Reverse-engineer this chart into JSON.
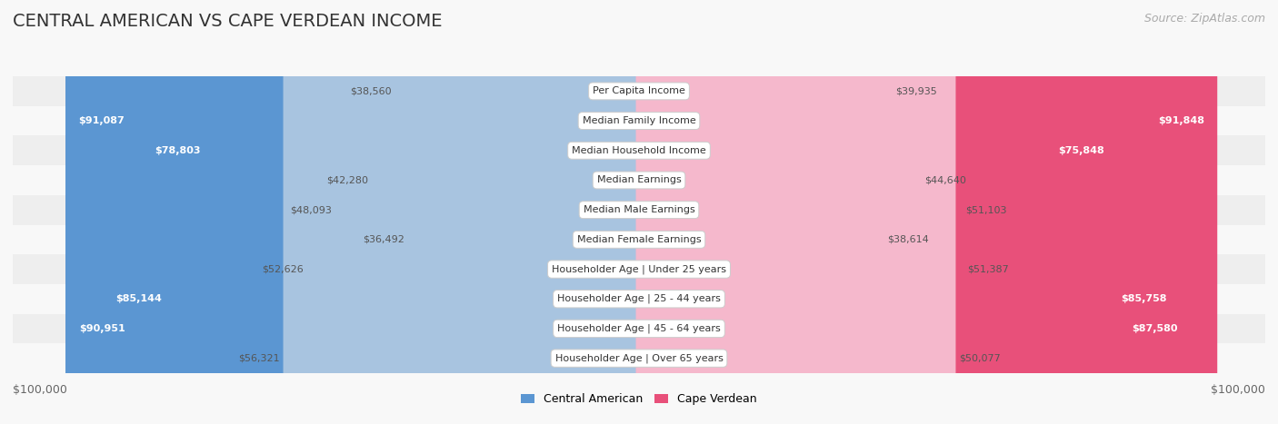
{
  "title": "CENTRAL AMERICAN VS CAPE VERDEAN INCOME",
  "source": "Source: ZipAtlas.com",
  "categories": [
    "Per Capita Income",
    "Median Family Income",
    "Median Household Income",
    "Median Earnings",
    "Median Male Earnings",
    "Median Female Earnings",
    "Householder Age | Under 25 years",
    "Householder Age | 25 - 44 years",
    "Householder Age | 45 - 64 years",
    "Householder Age | Over 65 years"
  ],
  "central_american": [
    38560,
    91087,
    78803,
    42280,
    48093,
    36492,
    52626,
    85144,
    90951,
    56321
  ],
  "cape_verdean": [
    39935,
    91848,
    75848,
    44640,
    51103,
    38614,
    51387,
    85758,
    87580,
    50077
  ],
  "central_american_labels": [
    "$38,560",
    "$91,087",
    "$78,803",
    "$42,280",
    "$48,093",
    "$36,492",
    "$52,626",
    "$85,144",
    "$90,951",
    "$56,321"
  ],
  "cape_verdean_labels": [
    "$39,935",
    "$91,848",
    "$75,848",
    "$44,640",
    "$51,103",
    "$38,614",
    "$51,387",
    "$85,758",
    "$87,580",
    "$50,077"
  ],
  "max_value": 100000,
  "color_central_light": "#a8c4e0",
  "color_central_dark": "#5b96d2",
  "color_cape_light": "#f5b8cc",
  "color_cape_dark": "#e8507a",
  "row_bg_odd": "#eeeeee",
  "row_bg_even": "#f8f8f8",
  "fig_bg": "#f8f8f8"
}
